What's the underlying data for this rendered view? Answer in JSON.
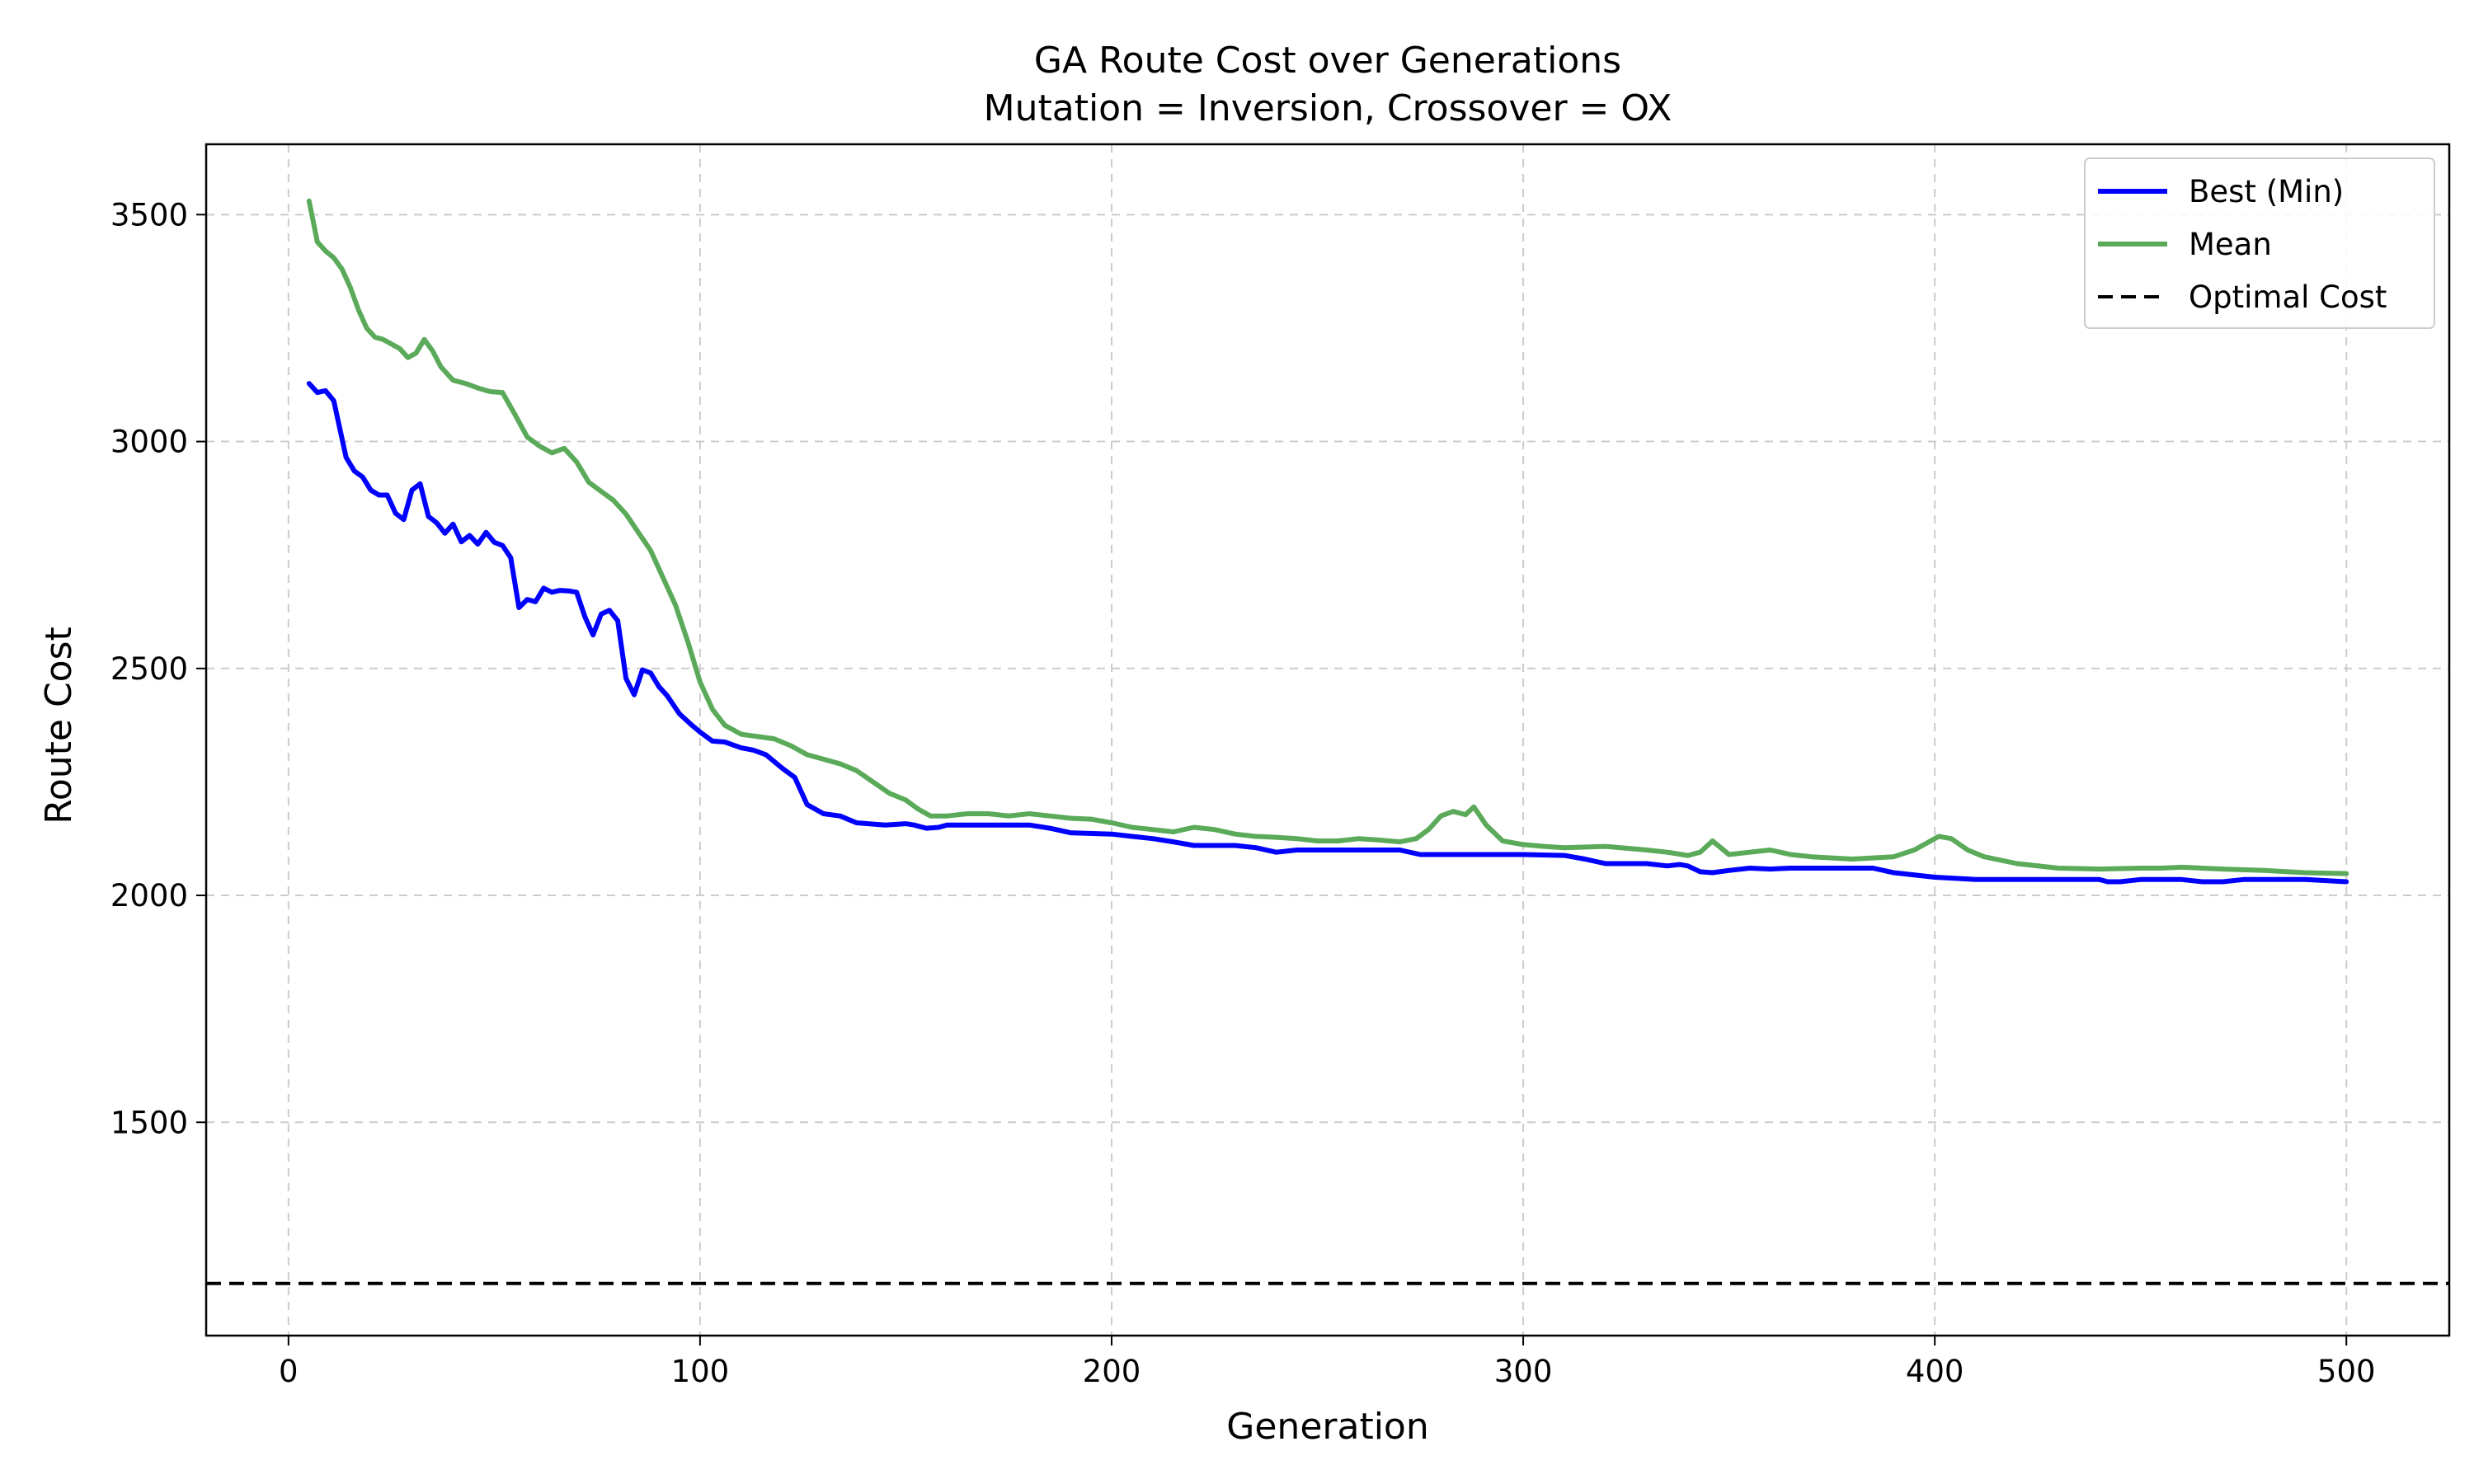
{
  "chart_data": {
    "type": "line",
    "title": "GA Route Cost over Generations",
    "subtitle": "Mutation = Inversion, Crossover = OX",
    "xlabel": "Generation",
    "ylabel": "Route Cost",
    "xlim": [
      -20,
      525
    ],
    "ylim": [
      1030,
      3655
    ],
    "xticks": [
      0,
      100,
      200,
      300,
      400,
      500
    ],
    "yticks": [
      1500,
      2000,
      2500,
      3000,
      3500
    ],
    "grid": true,
    "legend_position": "top-right",
    "series": [
      {
        "name": "Best (Min)",
        "color": "#0000ff",
        "style": "solid",
        "x": [
          5,
          7,
          9,
          11,
          14,
          16,
          18,
          20,
          22,
          24,
          26,
          28,
          30,
          32,
          34,
          36,
          38,
          40,
          42,
          44,
          46,
          48,
          50,
          52,
          54,
          56,
          58,
          60,
          62,
          64,
          66,
          68,
          70,
          72,
          74,
          76,
          78,
          80,
          82,
          84,
          86,
          88,
          90,
          92,
          95,
          98,
          100,
          103,
          106,
          110,
          113,
          116,
          120,
          123,
          126,
          130,
          134,
          138,
          145,
          150,
          152,
          155,
          158,
          160,
          170,
          180,
          185,
          190,
          200,
          205,
          210,
          215,
          220,
          230,
          235,
          240,
          245,
          250,
          260,
          270,
          275,
          280,
          300,
          310,
          315,
          320,
          330,
          335,
          338,
          340,
          343,
          346,
          350,
          355,
          360,
          365,
          370,
          375,
          385,
          390,
          400,
          410,
          420,
          430,
          440,
          442,
          445,
          450,
          455,
          460,
          465,
          470,
          475,
          480,
          490,
          500
        ],
        "values": [
          3128,
          3108,
          3112,
          3090,
          2965,
          2935,
          2922,
          2893,
          2882,
          2882,
          2842,
          2828,
          2893,
          2907,
          2835,
          2821,
          2798,
          2818,
          2779,
          2793,
          2774,
          2800,
          2778,
          2771,
          2744,
          2634,
          2652,
          2647,
          2677,
          2668,
          2672,
          2671,
          2668,
          2614,
          2574,
          2620,
          2628,
          2605,
          2478,
          2442,
          2497,
          2490,
          2460,
          2440,
          2400,
          2375,
          2360,
          2340,
          2338,
          2325,
          2320,
          2310,
          2280,
          2260,
          2200,
          2180,
          2175,
          2160,
          2155,
          2158,
          2155,
          2148,
          2150,
          2155,
          2155,
          2155,
          2148,
          2138,
          2135,
          2130,
          2125,
          2118,
          2110,
          2110,
          2105,
          2095,
          2100,
          2100,
          2100,
          2100,
          2090,
          2090,
          2090,
          2088,
          2080,
          2070,
          2070,
          2065,
          2068,
          2065,
          2052,
          2050,
          2055,
          2060,
          2058,
          2060,
          2060,
          2060,
          2060,
          2050,
          2040,
          2035,
          2035,
          2035,
          2035,
          2030,
          2030,
          2035,
          2035,
          2035,
          2030,
          2030,
          2035,
          2035,
          2035,
          2030
        ]
      },
      {
        "name": "Mean",
        "color": "#5aaa5a",
        "style": "solid",
        "x": [
          5,
          7,
          9,
          11,
          13,
          15,
          17,
          19,
          21,
          23,
          25,
          27,
          29,
          31,
          33,
          35,
          37,
          40,
          43,
          46,
          49,
          52,
          55,
          58,
          61,
          64,
          67,
          70,
          73,
          76,
          79,
          82,
          85,
          88,
          91,
          94,
          97,
          100,
          103,
          106,
          110,
          114,
          118,
          122,
          126,
          130,
          134,
          138,
          142,
          146,
          150,
          153,
          156,
          160,
          165,
          170,
          175,
          180,
          185,
          190,
          195,
          200,
          205,
          210,
          215,
          220,
          225,
          230,
          235,
          240,
          245,
          250,
          255,
          260,
          265,
          270,
          274,
          277,
          280,
          283,
          286,
          288,
          291,
          295,
          300,
          305,
          310,
          320,
          330,
          335,
          340,
          343,
          346,
          350,
          355,
          360,
          365,
          370,
          380,
          390,
          395,
          398,
          401,
          404,
          408,
          412,
          420,
          430,
          440,
          450,
          455,
          460,
          470,
          480,
          490,
          500
        ],
        "values": [
          3530,
          3440,
          3420,
          3405,
          3380,
          3340,
          3290,
          3250,
          3230,
          3225,
          3215,
          3205,
          3185,
          3195,
          3225,
          3200,
          3165,
          3135,
          3128,
          3118,
          3110,
          3108,
          3060,
          3010,
          2990,
          2975,
          2985,
          2955,
          2910,
          2890,
          2870,
          2840,
          2800,
          2760,
          2700,
          2640,
          2560,
          2470,
          2410,
          2375,
          2355,
          2350,
          2345,
          2330,
          2310,
          2300,
          2290,
          2275,
          2250,
          2225,
          2210,
          2190,
          2175,
          2175,
          2180,
          2180,
          2175,
          2180,
          2175,
          2170,
          2168,
          2160,
          2150,
          2145,
          2140,
          2150,
          2145,
          2135,
          2130,
          2128,
          2125,
          2120,
          2120,
          2125,
          2122,
          2118,
          2125,
          2145,
          2175,
          2185,
          2178,
          2195,
          2155,
          2120,
          2112,
          2108,
          2105,
          2108,
          2100,
          2095,
          2088,
          2095,
          2120,
          2090,
          2095,
          2100,
          2090,
          2085,
          2080,
          2085,
          2100,
          2115,
          2130,
          2125,
          2100,
          2085,
          2070,
          2060,
          2058,
          2060,
          2060,
          2062,
          2058,
          2055,
          2050,
          2048
        ]
      },
      {
        "name": "Optimal Cost",
        "color": "#000000",
        "style": "dashed",
        "constant": 1145
      }
    ]
  }
}
